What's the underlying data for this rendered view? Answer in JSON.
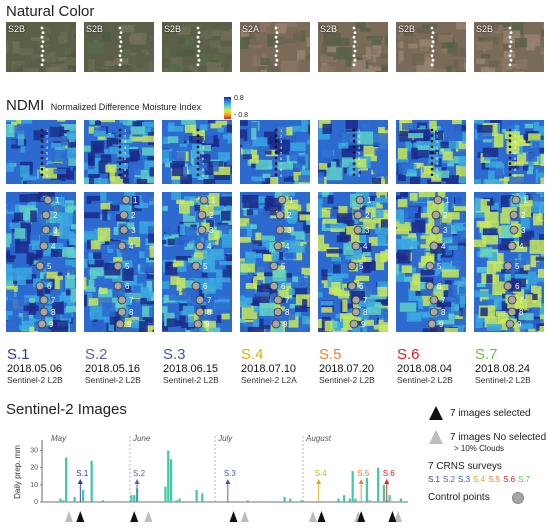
{
  "natural_color": {
    "title": "Natural Color",
    "tiles": [
      {
        "sensor": "S2B"
      },
      {
        "sensor": "S2B"
      },
      {
        "sensor": "S2B"
      },
      {
        "sensor": "S2A"
      },
      {
        "sensor": "S2B"
      },
      {
        "sensor": "S2B"
      },
      {
        "sensor": "S2B"
      }
    ]
  },
  "ndmi": {
    "title": "NDMI",
    "subtitle": "Normalized Difference Moisture Index",
    "scale_max": "0.8",
    "scale_min": "- 0.8",
    "colors": [
      "#1a2a8a",
      "#2d6ad0",
      "#3aa7e0",
      "#5fd0c8",
      "#c8e85a",
      "#f5d020",
      "#f08020",
      "#d42020"
    ]
  },
  "points": [
    "1",
    "2",
    "3",
    "4",
    "5",
    "6",
    "7",
    "8",
    "9"
  ],
  "surveys": [
    {
      "id": "S.1",
      "date": "2018.05.06",
      "sensor": "Sentinel-2 L2B",
      "color": "#2a3a9a"
    },
    {
      "id": "S.2",
      "date": "2018.05.16",
      "sensor": "Sentinel-2 L2B",
      "color": "#6a5aa8"
    },
    {
      "id": "S.3",
      "date": "2018.06.15",
      "sensor": "Sentinel-2 L2B",
      "color": "#3a5ab0"
    },
    {
      "id": "S.4",
      "date": "2018.07.10",
      "sensor": "Sentinel-2 L2A",
      "color": "#d4b010"
    },
    {
      "id": "S.5",
      "date": "2018.07.20",
      "sensor": "Sentinel-2 L2B",
      "color": "#f08030"
    },
    {
      "id": "S.6",
      "date": "2018.08.04",
      "sensor": "Sentinel-2 L2B",
      "color": "#e02020"
    },
    {
      "id": "S.7",
      "date": "2018.08.24",
      "sensor": "Sentinel-2 L2B",
      "color": "#70c040"
    }
  ],
  "sentinel_title": "Sentinel-2 Images",
  "legend": {
    "selected": "7 images selected",
    "not_selected": "7 images No selected",
    "clouds": "> 10% Clouds",
    "crns": "7 CRNS surveys",
    "control": "Control points"
  },
  "chart_data": {
    "type": "bar",
    "ylabel": "Daily prep. mm",
    "yticks": [
      "0",
      "10",
      "20",
      "30"
    ],
    "ylim": [
      0,
      35
    ],
    "months": [
      "May",
      "June",
      "July",
      "August"
    ],
    "values": [
      0,
      0,
      0,
      0,
      0,
      0,
      2,
      1,
      26,
      0,
      0,
      3,
      0,
      0,
      7,
      0,
      0,
      24,
      0,
      0,
      0,
      1,
      0,
      0,
      0,
      0,
      0,
      0,
      0,
      0,
      0,
      4,
      4,
      8,
      0,
      0,
      0,
      0,
      0,
      0,
      0,
      0,
      0,
      9,
      30,
      25,
      0,
      1,
      2,
      0,
      0,
      0,
      0,
      0,
      7,
      0,
      5,
      0,
      0,
      0,
      0,
      0,
      0,
      0,
      0,
      0,
      0,
      0,
      0,
      0,
      0,
      0,
      1,
      0,
      0,
      0,
      0,
      0,
      0,
      0,
      0,
      0,
      0,
      0,
      0,
      3,
      0,
      2,
      0,
      0,
      0,
      1,
      0,
      0,
      0,
      0,
      0,
      0,
      0,
      0,
      0,
      0,
      0,
      0,
      2,
      0,
      4,
      0,
      2,
      18,
      2,
      0,
      0,
      0,
      14,
      1,
      0,
      0,
      20,
      0,
      10,
      1,
      4,
      0,
      0,
      0,
      2,
      0,
      0
    ],
    "survey_days": [
      13,
      33,
      65,
      97,
      112,
      121,
      135
    ],
    "selected_days": [
      13,
      32,
      67,
      98,
      112,
      123,
      136
    ],
    "unselected_days": [
      9,
      37,
      71,
      95,
      111,
      125,
      140
    ],
    "bar_color": "#3ec9a7"
  }
}
